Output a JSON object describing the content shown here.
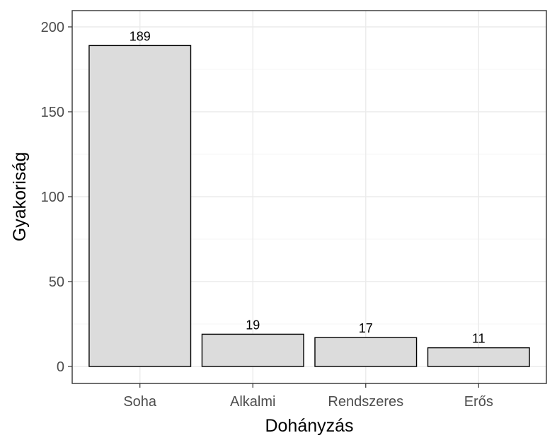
{
  "chart_data": {
    "type": "bar",
    "categories": [
      "Soha",
      "Alkalmi",
      "Rendszeres",
      "Erős"
    ],
    "values": [
      189,
      19,
      17,
      11
    ],
    "data_labels": [
      "189",
      "19",
      "17",
      "11"
    ],
    "title": "",
    "xlabel": "Dohányzás",
    "ylabel": "Gyakoriság",
    "ylim": [
      -10,
      210
    ],
    "yticks": [
      0,
      50,
      100,
      150,
      200
    ],
    "ytick_labels": [
      "0",
      "50",
      "100",
      "150",
      "200"
    ],
    "grid": true,
    "colors": {
      "bar_fill": "#dcdcdc",
      "bar_stroke": "#000000"
    }
  }
}
